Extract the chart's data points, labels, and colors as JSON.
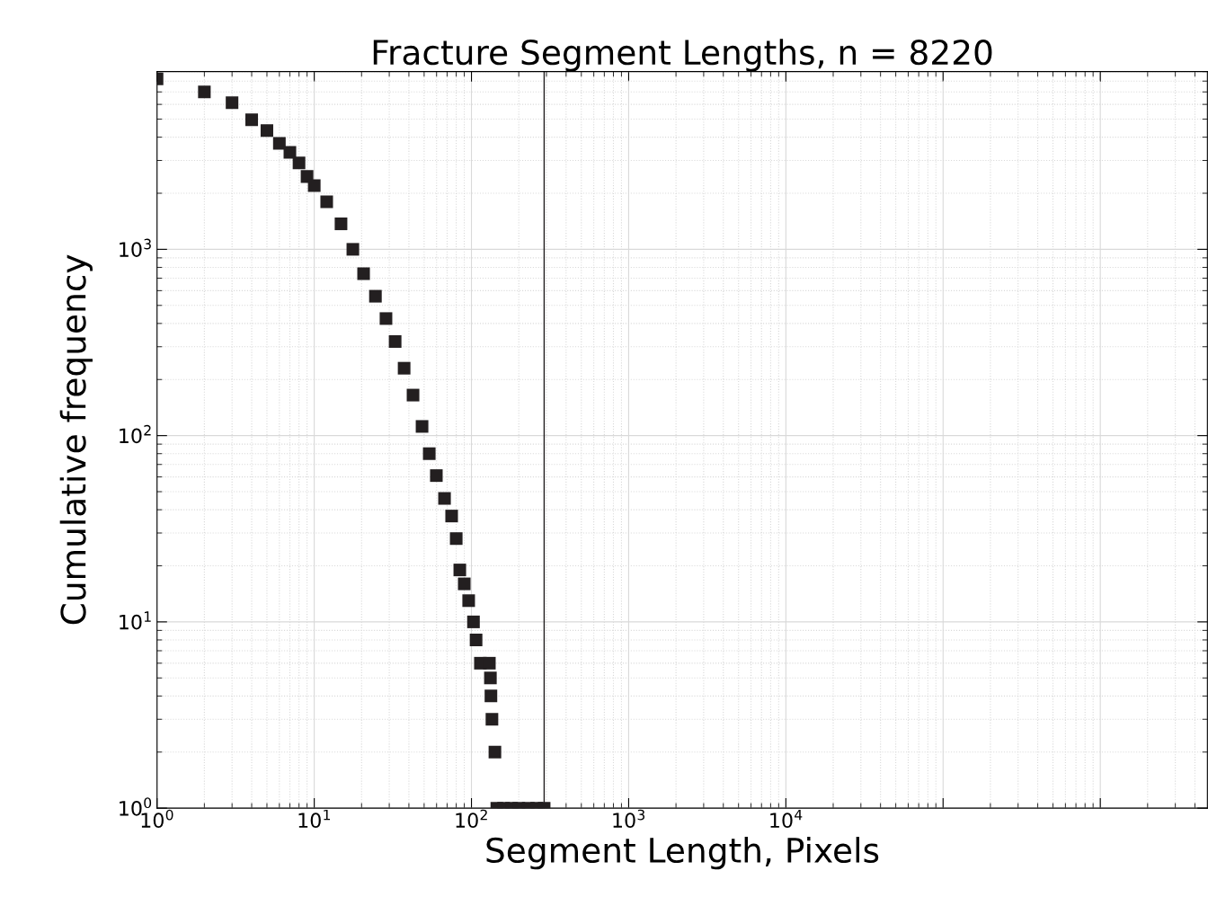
{
  "chart_data": {
    "type": "scatter",
    "title": "Fracture Segment Lengths, n = 8220",
    "xlabel": "Segment Length, Pixels",
    "ylabel": "Cumulative frequency",
    "x": [
      1,
      2,
      3,
      4,
      5,
      6,
      7,
      8,
      9,
      10,
      12,
      14.8,
      17.6,
      20.6,
      24.5,
      28.6,
      32.7,
      37.3,
      42.5,
      48.5,
      53.9,
      59.8,
      67.4,
      74.8,
      80,
      84.3,
      90,
      96,
      103,
      107,
      114,
      130,
      132,
      133,
      135,
      141,
      145,
      160,
      180,
      200,
      230,
      260,
      290
    ],
    "series": [
      {
        "color": "#231f20",
        "values": [
          8220,
          7000,
          6130,
          4960,
          4340,
          3710,
          3320,
          2910,
          2460,
          2200,
          1800,
          1370,
          1000,
          740,
          560,
          425,
          320,
          230,
          165,
          112,
          80,
          61,
          46,
          37,
          28,
          19,
          16,
          13,
          10,
          8,
          6,
          6,
          5,
          4,
          3,
          2,
          1,
          1,
          1,
          1,
          1,
          1,
          1
        ]
      }
    ],
    "marker": "square",
    "log": "xy",
    "grid": true,
    "xlim": [
      1,
      4800000
    ],
    "ylim": [
      1,
      9000
    ],
    "xticks": [
      {
        "value": 1,
        "label": "10$^{0}$"
      },
      {
        "value": 10,
        "label": "10$^{1}$"
      },
      {
        "value": 100,
        "label": "10$^{2}$"
      },
      {
        "value": 1000,
        "label": "10$^{3}$"
      },
      {
        "value": 10000,
        "label": "10$^{4}$"
      },
      {
        "value": 100000,
        "label": null
      },
      {
        "value": 1000000,
        "label": null
      }
    ],
    "yticks": [
      {
        "value": 1,
        "label": "10$^{0}$"
      },
      {
        "value": 10,
        "label": "10$^{1}$"
      },
      {
        "value": 100,
        "label": "10$^{2}$"
      },
      {
        "value": 1000,
        "label": "10$^{3}$"
      }
    ],
    "ref_lines": [
      {
        "axis": "x",
        "value": 290,
        "color": "#231f20",
        "line_style": "solid"
      }
    ]
  }
}
